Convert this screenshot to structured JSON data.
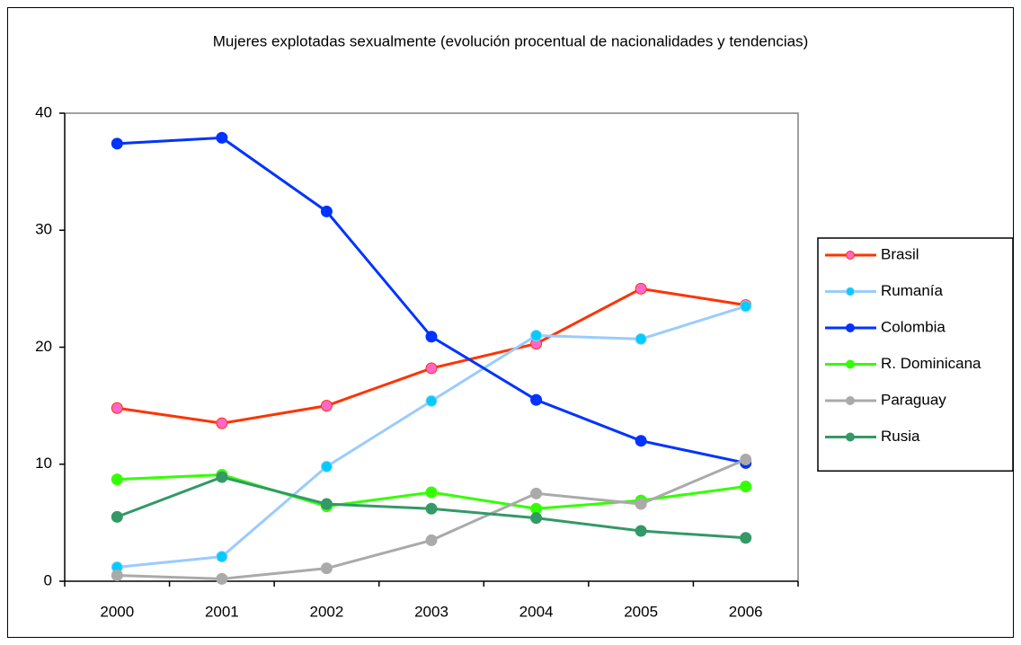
{
  "chart_data": {
    "type": "line",
    "title": "Mujeres explotadas sexualmente (evolución procentual de nacionalidades y tendencias)",
    "categories": [
      "2000",
      "2001",
      "2002",
      "2003",
      "2004",
      "2005",
      "2006"
    ],
    "series": [
      {
        "name": "Brasil",
        "color": "#ff3300",
        "marker_color": "#ff66cc",
        "values": [
          14.8,
          13.5,
          15.0,
          18.2,
          20.3,
          25.0,
          23.6
        ]
      },
      {
        "name": "Rumanía",
        "color": "#99ccff",
        "marker_color": "#00ccff",
        "values": [
          1.2,
          2.1,
          9.8,
          15.4,
          21.0,
          20.7,
          23.5
        ]
      },
      {
        "name": "Colombia",
        "color": "#0033ff",
        "marker_color": "#0033ff",
        "values": [
          37.4,
          37.9,
          31.6,
          20.9,
          15.5,
          12.0,
          10.1
        ]
      },
      {
        "name": "R. Dominicana",
        "color": "#33ff00",
        "marker_color": "#33ff00",
        "values": [
          8.7,
          9.1,
          6.4,
          7.6,
          6.2,
          6.9,
          8.1
        ]
      },
      {
        "name": "Paraguay",
        "color": "#aaaaaa",
        "marker_color": "#aaaaaa",
        "values": [
          0.5,
          0.2,
          1.1,
          3.5,
          7.5,
          6.6,
          10.4
        ]
      },
      {
        "name": "Rusia",
        "color": "#339966",
        "marker_color": "#339966",
        "values": [
          5.5,
          8.9,
          6.6,
          6.2,
          5.4,
          4.3,
          3.7
        ]
      }
    ],
    "ylim": [
      0,
      40
    ],
    "yticks": [
      0,
      10,
      20,
      30,
      40
    ],
    "grid": false,
    "legend": "right"
  }
}
